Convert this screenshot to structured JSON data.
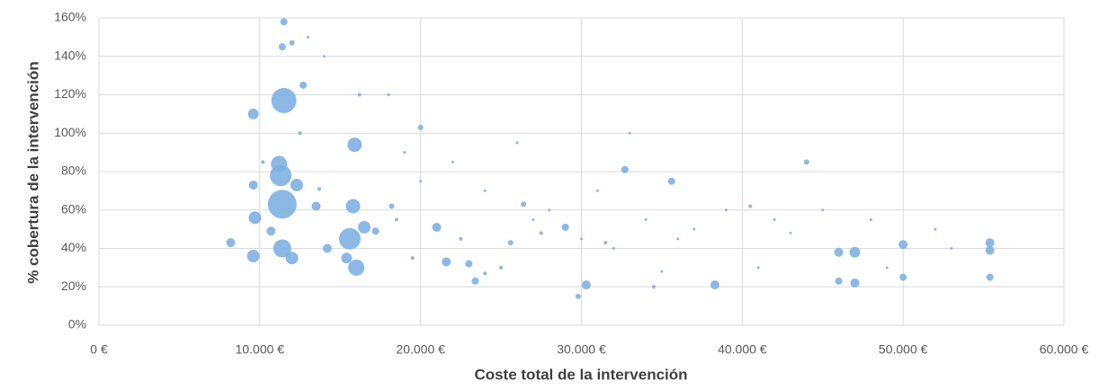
{
  "chart_data": {
    "type": "bubble",
    "x_label": "Coste total de la intervención",
    "y_label": "% cobertura de la intervención",
    "color": "#7fb0e3",
    "grid": true,
    "xlim": [
      0,
      60000
    ],
    "xticks": [
      {
        "value": 0,
        "label": "0 €"
      },
      {
        "value": 10000,
        "label": "10.000 €"
      },
      {
        "value": 20000,
        "label": "20.000 €"
      },
      {
        "value": 30000,
        "label": "30.000 €"
      },
      {
        "value": 40000,
        "label": "40.000 €"
      },
      {
        "value": 50000,
        "label": "50.000 €"
      },
      {
        "value": 60000,
        "label": "60.000 €"
      }
    ],
    "ylim": [
      0,
      160
    ],
    "yticks": [
      {
        "value": 0,
        "label": "0%"
      },
      {
        "value": 20,
        "label": "20%"
      },
      {
        "value": 40,
        "label": "40%"
      },
      {
        "value": 60,
        "label": "60%"
      },
      {
        "value": 80,
        "label": "80%"
      },
      {
        "value": 100,
        "label": "100%"
      },
      {
        "value": 120,
        "label": "120%"
      },
      {
        "value": 140,
        "label": "140%"
      },
      {
        "value": 160,
        "label": "160%"
      }
    ],
    "x": [
      11500,
      11400,
      11300,
      11200,
      11400,
      15600,
      15900,
      15800,
      16000,
      16500,
      9600,
      9700,
      9600,
      9600,
      8200,
      12300,
      12000,
      10700,
      12700,
      11400,
      11500,
      12000,
      15400,
      21000,
      21600,
      23000,
      20000,
      25600,
      29000,
      30300,
      32700,
      35600,
      38300,
      44000,
      46000,
      47000,
      47000,
      46000,
      50000,
      50000,
      55400,
      55400,
      55400,
      26400,
      23400,
      29800,
      13500,
      14200,
      17200,
      18200,
      13000,
      14000,
      18000,
      19000,
      20000,
      22000,
      24000,
      26000,
      27000,
      28000,
      30000,
      31000,
      33000,
      34000,
      36000,
      37000,
      39000,
      40500,
      42000,
      43000,
      45000,
      48000,
      52000,
      53000,
      49000,
      41000,
      35000,
      32000,
      25000,
      24000,
      18500,
      19500,
      22500,
      27500,
      31500,
      34500,
      12500,
      13700,
      10200,
      16200
    ],
    "values": [
      117,
      63,
      78,
      84,
      40,
      45,
      94,
      62,
      30,
      51,
      110,
      56,
      36,
      73,
      43,
      73,
      35,
      49,
      125,
      145,
      158,
      147,
      35,
      51,
      33,
      32,
      103,
      43,
      51,
      21,
      81,
      75,
      21,
      85,
      38,
      38,
      22,
      23,
      42,
      25,
      43,
      39,
      25,
      63,
      23,
      15,
      62,
      40,
      49,
      62,
      150,
      140,
      120,
      90,
      75,
      85,
      70,
      95,
      55,
      60,
      45,
      70,
      100,
      55,
      45,
      50,
      60,
      62,
      55,
      48,
      60,
      55,
      50,
      40,
      30,
      30,
      28,
      40,
      30,
      27,
      55,
      35,
      45,
      48,
      43,
      20,
      100,
      71,
      85,
      120
    ],
    "sizes": [
      14,
      16,
      12,
      9,
      10,
      12,
      8,
      8,
      9,
      7,
      6,
      7,
      7,
      5,
      5,
      7,
      7,
      5,
      4,
      4,
      4,
      3,
      6,
      5,
      5,
      4,
      3,
      3,
      4,
      5,
      4,
      4,
      5,
      3,
      5,
      6,
      5,
      4,
      5,
      4,
      5,
      5,
      4,
      3,
      4,
      3,
      5,
      5,
      4,
      3,
      1.5,
      1.5,
      1.5,
      1.5,
      1.5,
      1.5,
      1.5,
      1.5,
      1.5,
      1.5,
      1.5,
      1.5,
      1.5,
      1.5,
      1.5,
      1.5,
      1.5,
      2,
      1.5,
      1.5,
      1.5,
      1.5,
      1.5,
      1.5,
      1.5,
      1.5,
      1.5,
      1.5,
      2,
      2,
      2,
      2,
      2,
      2,
      2,
      2,
      2,
      2,
      2,
      2
    ]
  }
}
